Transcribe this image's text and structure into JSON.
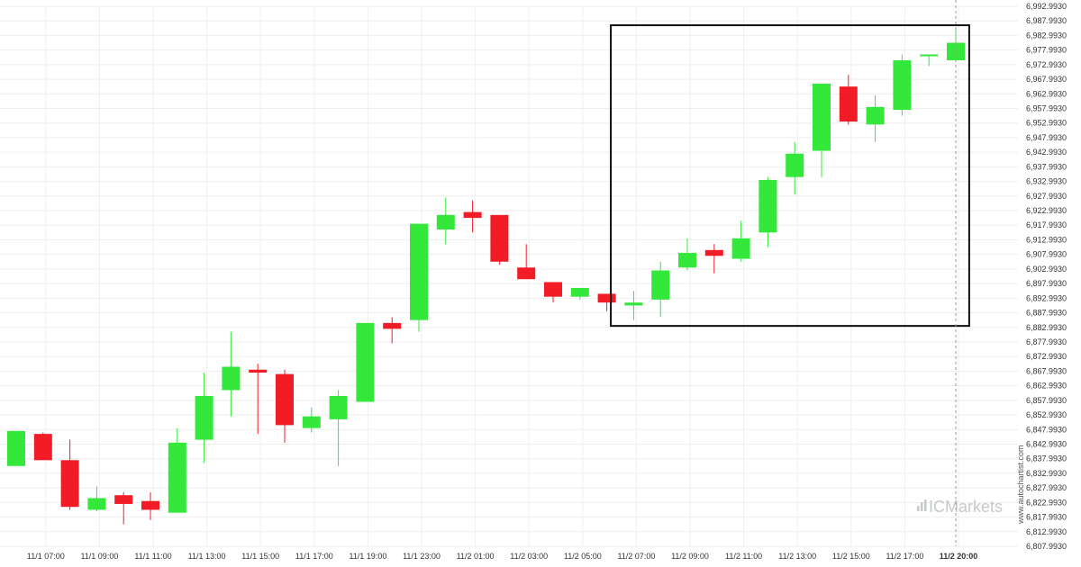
{
  "chart_data": {
    "type": "candlestick",
    "title": "",
    "xlabel": "",
    "ylabel": "",
    "ylim": [
      6807.993,
      6992.993
    ],
    "grid": true,
    "y_ticks": [
      "6,992.9930",
      "6,987.9930",
      "6,982.9930",
      "6,977.9930",
      "6,972.9930",
      "6,967.9930",
      "6,962.9930",
      "6,957.9930",
      "6,952.9930",
      "6,947.9930",
      "6,942.9930",
      "6,937.9930",
      "6,932.9930",
      "6,927.9930",
      "6,922.9930",
      "6,917.9930",
      "6,912.9930",
      "6,907.9930",
      "6,902.9930",
      "6,897.9930",
      "6,892.9930",
      "6,887.9930",
      "6,882.9930",
      "6,877.9930",
      "6,872.9930",
      "6,867.9930",
      "6,862.9930",
      "6,857.9930",
      "6,852.9930",
      "6,847.9930",
      "6,842.9930",
      "6,837.9930",
      "6,832.9930",
      "6,827.9930",
      "6,822.9930",
      "6,817.9930",
      "6,812.9930",
      "6,807.9930"
    ],
    "x_ticks": [
      {
        "index": 1,
        "label": "11/1 07:00"
      },
      {
        "index": 3,
        "label": "11/1 09:00"
      },
      {
        "index": 5,
        "label": "11/1 11:00"
      },
      {
        "index": 7,
        "label": "11/1 13:00"
      },
      {
        "index": 9,
        "label": "11/1 15:00"
      },
      {
        "index": 11,
        "label": "11/1 17:00"
      },
      {
        "index": 13,
        "label": "11/1 19:00"
      },
      {
        "index": 15,
        "label": "11/1 23:00"
      },
      {
        "index": 17,
        "label": "11/2 01:00"
      },
      {
        "index": 19,
        "label": "11/2 03:00"
      },
      {
        "index": 21,
        "label": "11/2 05:00"
      },
      {
        "index": 23,
        "label": "11/2 07:00"
      },
      {
        "index": 25,
        "label": "11/2 09:00"
      },
      {
        "index": 27,
        "label": "11/2 11:00"
      },
      {
        "index": 29,
        "label": "11/2 13:00"
      },
      {
        "index": 31,
        "label": "11/2 15:00"
      },
      {
        "index": 33,
        "label": "11/2 17:00"
      },
      {
        "index": 35,
        "label": "11/2 20:00",
        "bold": true
      }
    ],
    "candles": [
      {
        "o": 6835.5,
        "h": 6847.5,
        "l": 6835.5,
        "c": 6847.5
      },
      {
        "o": 6846.5,
        "h": 6847.0,
        "l": 6837.5,
        "c": 6837.5
      },
      {
        "o": 6837.5,
        "h": 6844.5,
        "l": 6820.5,
        "c": 6821.5
      },
      {
        "o": 6820.5,
        "h": 6828.5,
        "l": 6820.0,
        "c": 6824.5
      },
      {
        "o": 6825.5,
        "h": 6826.5,
        "l": 6815.5,
        "c": 6822.5
      },
      {
        "o": 6823.5,
        "h": 6826.5,
        "l": 6817.0,
        "c": 6820.5
      },
      {
        "o": 6819.5,
        "h": 6848.5,
        "l": 6819.5,
        "c": 6843.5
      },
      {
        "o": 6844.5,
        "h": 6867.5,
        "l": 6836.5,
        "c": 6859.5
      },
      {
        "o": 6861.5,
        "h": 6881.5,
        "l": 6852.5,
        "c": 6869.5
      },
      {
        "o": 6868.5,
        "h": 6870.5,
        "l": 6846.5,
        "c": 6867.5
      },
      {
        "o": 6867.0,
        "h": 6868.5,
        "l": 6843.5,
        "c": 6849.5
      },
      {
        "o": 6848.5,
        "h": 6855.5,
        "l": 6847.0,
        "c": 6852.5
      },
      {
        "o": 6851.5,
        "h": 6861.5,
        "l": 6835.5,
        "c": 6859.5
      },
      {
        "o": 6857.5,
        "h": 6884.5,
        "l": 6857.5,
        "c": 6884.5
      },
      {
        "o": 6884.5,
        "h": 6886.5,
        "l": 6877.5,
        "c": 6882.5
      },
      {
        "o": 6885.5,
        "h": 6918.5,
        "l": 6881.5,
        "c": 6918.5
      },
      {
        "o": 6916.5,
        "h": 6927.5,
        "l": 6911.5,
        "c": 6921.5
      },
      {
        "o": 6922.5,
        "h": 6926.5,
        "l": 6915.5,
        "c": 6920.5
      },
      {
        "o": 6921.5,
        "h": 6921.5,
        "l": 6904.5,
        "c": 6905.5
      },
      {
        "o": 6903.5,
        "h": 6911.5,
        "l": 6899.5,
        "c": 6899.5
      },
      {
        "o": 6898.5,
        "h": 6898.5,
        "l": 6891.5,
        "c": 6893.5
      },
      {
        "o": 6893.5,
        "h": 6896.5,
        "l": 6892.5,
        "c": 6896.5
      },
      {
        "o": 6894.5,
        "h": 6894.5,
        "l": 6888.5,
        "c": 6891.5
      },
      {
        "o": 6890.5,
        "h": 6895.5,
        "l": 6885.5,
        "c": 6891.5
      },
      {
        "o": 6892.5,
        "h": 6905.5,
        "l": 6886.5,
        "c": 6902.5
      },
      {
        "o": 6903.5,
        "h": 6913.5,
        "l": 6902.5,
        "c": 6908.5
      },
      {
        "o": 6909.5,
        "h": 6911.5,
        "l": 6901.5,
        "c": 6907.5
      },
      {
        "o": 6906.5,
        "h": 6919.5,
        "l": 6905.5,
        "c": 6913.5
      },
      {
        "o": 6915.5,
        "h": 6934.5,
        "l": 6910.5,
        "c": 6933.5
      },
      {
        "o": 6934.5,
        "h": 6946.5,
        "l": 6928.5,
        "c": 6942.5
      },
      {
        "o": 6943.5,
        "h": 6966.5,
        "l": 6934.5,
        "c": 6966.5
      },
      {
        "o": 6965.5,
        "h": 6969.5,
        "l": 6952.5,
        "c": 6953.5
      },
      {
        "o": 6952.5,
        "h": 6962.5,
        "l": 6946.5,
        "c": 6958.5
      },
      {
        "o": 6957.5,
        "h": 6976.5,
        "l": 6955.5,
        "c": 6974.5
      },
      {
        "o": 6976.5,
        "h": 6976.5,
        "l": 6972.5,
        "c": 6976.5
      },
      {
        "o": 6974.5,
        "h": 6985.0,
        "l": 6974.5,
        "c": 6980.5
      }
    ],
    "highlight_box": {
      "from_index": 22.15,
      "to_index": 35.5,
      "y_top": 6986.5,
      "y_bottom": 6883.5
    },
    "current_marker_index": 35
  },
  "colors": {
    "up": "#33e83b",
    "down": "#f21c26",
    "box": "#111111",
    "grid": "#eeeeee"
  },
  "watermark": {
    "brand": "ICMarkets",
    "url": "www.autochartist.com"
  }
}
